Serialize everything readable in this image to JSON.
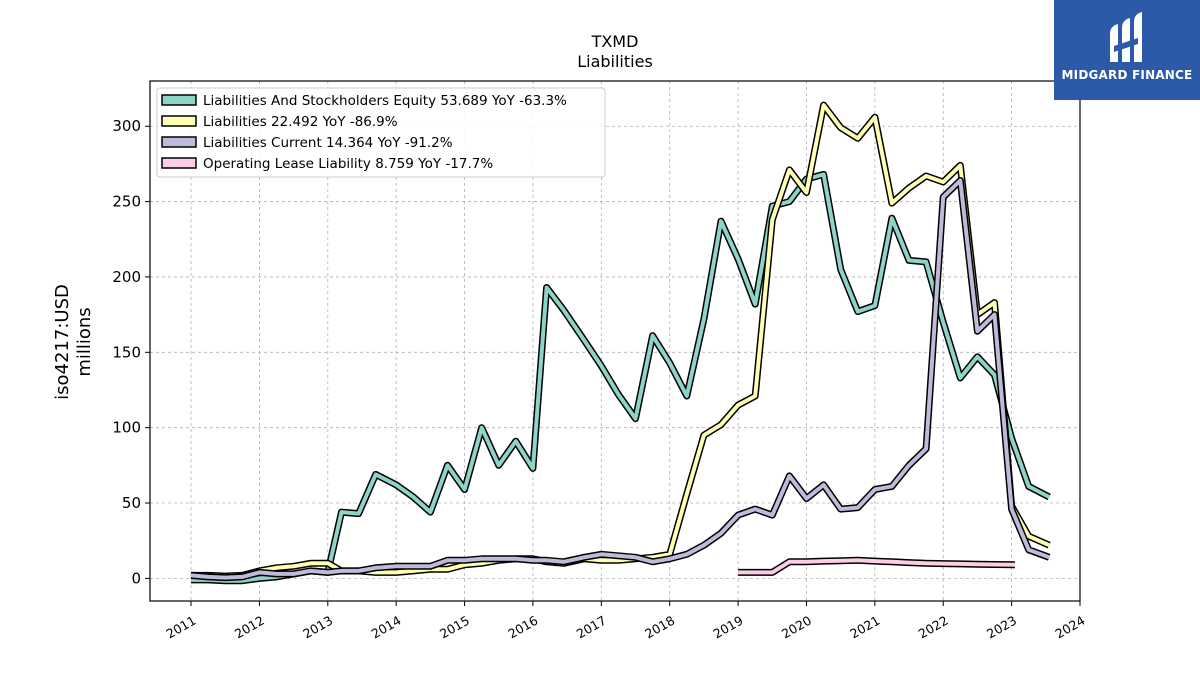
{
  "chart_data": {
    "type": "line",
    "title": "TXMD",
    "subtitle": "Liabilities",
    "ylabel_line1": "iso4217:USD",
    "ylabel_line2": "millions",
    "xlim": [
      2010.4,
      2024.0
    ],
    "ylim": [
      -15,
      330
    ],
    "grid": true,
    "legend_position": "top-left",
    "y_ticks": [
      0,
      50,
      100,
      150,
      200,
      250,
      300
    ],
    "x_ticks": [
      "2011",
      "2012",
      "2013",
      "2014",
      "2015",
      "2016",
      "2017",
      "2018",
      "2019",
      "2020",
      "2021",
      "2022",
      "2023",
      "2024"
    ],
    "series": [
      {
        "name": "Liabilities And Stockholders Equity",
        "legend": "Liabilities And Stockholders Equity  53.689 YoY -63.3%",
        "color": "#8dd3c7",
        "points": [
          [
            2011.0,
            -1
          ],
          [
            2011.25,
            -1
          ],
          [
            2011.5,
            -1.5
          ],
          [
            2011.75,
            -1.5
          ],
          [
            2012.0,
            0
          ],
          [
            2012.25,
            1
          ],
          [
            2012.5,
            3
          ],
          [
            2012.75,
            5
          ],
          [
            2013.0,
            4
          ],
          [
            2013.2,
            44
          ],
          [
            2013.45,
            43
          ],
          [
            2013.7,
            69
          ],
          [
            2014.0,
            62
          ],
          [
            2014.25,
            54
          ],
          [
            2014.5,
            44
          ],
          [
            2014.75,
            75
          ],
          [
            2015.0,
            59
          ],
          [
            2015.25,
            100
          ],
          [
            2015.5,
            75
          ],
          [
            2015.75,
            91
          ],
          [
            2016.0,
            73
          ],
          [
            2016.2,
            193
          ],
          [
            2016.45,
            178
          ],
          [
            2016.75,
            158
          ],
          [
            2017.0,
            141
          ],
          [
            2017.25,
            122
          ],
          [
            2017.5,
            106
          ],
          [
            2017.75,
            161
          ],
          [
            2018.0,
            143
          ],
          [
            2018.25,
            121
          ],
          [
            2018.5,
            172
          ],
          [
            2018.75,
            237
          ],
          [
            2019.0,
            212
          ],
          [
            2019.25,
            182
          ],
          [
            2019.5,
            247
          ],
          [
            2019.75,
            250
          ],
          [
            2020.0,
            265
          ],
          [
            2020.25,
            268
          ],
          [
            2020.5,
            205
          ],
          [
            2020.75,
            177
          ],
          [
            2021.0,
            181
          ],
          [
            2021.25,
            239
          ],
          [
            2021.5,
            211
          ],
          [
            2021.75,
            210
          ],
          [
            2022.0,
            170
          ],
          [
            2022.25,
            133
          ],
          [
            2022.5,
            147
          ],
          [
            2022.75,
            135
          ],
          [
            2023.0,
            93
          ],
          [
            2023.25,
            61
          ],
          [
            2023.55,
            54
          ]
        ]
      },
      {
        "name": "Liabilities",
        "legend": "Liabilities  22.492 YoY -86.9%",
        "color": "#ffffb3",
        "points": [
          [
            2011.0,
            2
          ],
          [
            2011.25,
            2
          ],
          [
            2011.5,
            1.5
          ],
          [
            2011.75,
            2
          ],
          [
            2012.0,
            5
          ],
          [
            2012.25,
            7
          ],
          [
            2012.5,
            8
          ],
          [
            2012.75,
            10
          ],
          [
            2013.0,
            10
          ],
          [
            2013.2,
            5
          ],
          [
            2013.45,
            5
          ],
          [
            2013.7,
            4
          ],
          [
            2014.0,
            4
          ],
          [
            2014.25,
            5
          ],
          [
            2014.5,
            6
          ],
          [
            2014.75,
            6
          ],
          [
            2015.0,
            9
          ],
          [
            2015.25,
            10
          ],
          [
            2015.5,
            12
          ],
          [
            2015.75,
            13
          ],
          [
            2016.0,
            13
          ],
          [
            2016.2,
            11
          ],
          [
            2016.45,
            10
          ],
          [
            2016.75,
            13
          ],
          [
            2017.0,
            12
          ],
          [
            2017.25,
            12
          ],
          [
            2017.5,
            13
          ],
          [
            2017.75,
            14
          ],
          [
            2018.0,
            16
          ],
          [
            2018.25,
            56
          ],
          [
            2018.5,
            95
          ],
          [
            2018.75,
            102
          ],
          [
            2019.0,
            115
          ],
          [
            2019.25,
            121
          ],
          [
            2019.5,
            238
          ],
          [
            2019.75,
            271
          ],
          [
            2020.0,
            256
          ],
          [
            2020.25,
            314
          ],
          [
            2020.5,
            299
          ],
          [
            2020.75,
            292
          ],
          [
            2021.0,
            306
          ],
          [
            2021.25,
            249
          ],
          [
            2021.5,
            259
          ],
          [
            2021.75,
            267
          ],
          [
            2022.0,
            263
          ],
          [
            2022.25,
            274
          ],
          [
            2022.5,
            175
          ],
          [
            2022.75,
            183
          ],
          [
            2023.0,
            48
          ],
          [
            2023.25,
            28
          ],
          [
            2023.55,
            22
          ]
        ]
      },
      {
        "name": "Liabilities Current",
        "legend": "Liabilities Current  14.364 YoY -91.2%",
        "color": "#bebada",
        "points": [
          [
            2011.0,
            2
          ],
          [
            2011.25,
            1
          ],
          [
            2011.5,
            0.5
          ],
          [
            2011.75,
            1
          ],
          [
            2012.0,
            4
          ],
          [
            2012.25,
            3
          ],
          [
            2012.5,
            3
          ],
          [
            2012.75,
            5
          ],
          [
            2013.0,
            4
          ],
          [
            2013.2,
            5
          ],
          [
            2013.45,
            5
          ],
          [
            2013.7,
            7
          ],
          [
            2014.0,
            8
          ],
          [
            2014.25,
            8
          ],
          [
            2014.5,
            8
          ],
          [
            2014.75,
            12
          ],
          [
            2015.0,
            12
          ],
          [
            2015.25,
            13
          ],
          [
            2015.5,
            13
          ],
          [
            2015.75,
            13
          ],
          [
            2016.0,
            12
          ],
          [
            2016.2,
            12
          ],
          [
            2016.45,
            11
          ],
          [
            2016.75,
            14
          ],
          [
            2017.0,
            16
          ],
          [
            2017.25,
            15
          ],
          [
            2017.5,
            14
          ],
          [
            2017.75,
            11
          ],
          [
            2018.0,
            13
          ],
          [
            2018.25,
            16
          ],
          [
            2018.5,
            22
          ],
          [
            2018.75,
            30
          ],
          [
            2019.0,
            42
          ],
          [
            2019.25,
            46
          ],
          [
            2019.5,
            42
          ],
          [
            2019.75,
            68
          ],
          [
            2020.0,
            53
          ],
          [
            2020.25,
            62
          ],
          [
            2020.5,
            46
          ],
          [
            2020.75,
            47
          ],
          [
            2021.0,
            59
          ],
          [
            2021.25,
            61
          ],
          [
            2021.5,
            75
          ],
          [
            2021.75,
            86
          ],
          [
            2022.0,
            253
          ],
          [
            2022.25,
            264
          ],
          [
            2022.5,
            164
          ],
          [
            2022.75,
            175
          ],
          [
            2023.0,
            46
          ],
          [
            2023.25,
            19
          ],
          [
            2023.55,
            14
          ]
        ]
      },
      {
        "name": "Operating Lease Liability",
        "legend": "Operating Lease Liability  8.759 YoY -17.7%",
        "color": "#fccde5",
        "points": [
          [
            2019.0,
            4
          ],
          [
            2019.25,
            4
          ],
          [
            2019.5,
            4
          ],
          [
            2019.75,
            11
          ],
          [
            2020.0,
            11
          ],
          [
            2020.25,
            11.5
          ],
          [
            2020.5,
            11.7
          ],
          [
            2020.75,
            12
          ],
          [
            2021.0,
            11.5
          ],
          [
            2021.25,
            11
          ],
          [
            2021.5,
            10.5
          ],
          [
            2021.75,
            10
          ],
          [
            2022.0,
            9.8
          ],
          [
            2022.25,
            9.6
          ],
          [
            2022.5,
            9.4
          ],
          [
            2022.75,
            9.2
          ],
          [
            2023.05,
            9
          ]
        ]
      }
    ]
  },
  "logo": {
    "text": "MIDGARD FINANCE"
  }
}
